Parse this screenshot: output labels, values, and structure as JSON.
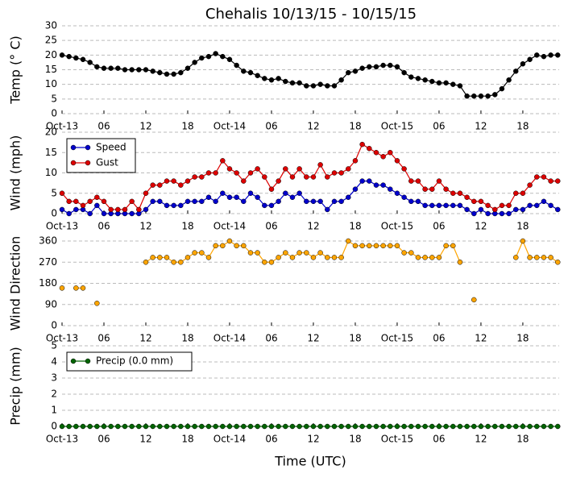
{
  "chart_data": [
    {
      "type": "line",
      "title": "Chehalis 10/13/15 - 10/15/15",
      "ylabel": "Temp (° C)",
      "color": "#000000",
      "x": [
        0,
        1,
        2,
        3,
        4,
        5,
        6,
        7,
        8,
        9,
        10,
        11,
        12,
        13,
        14,
        15,
        16,
        17,
        18,
        19,
        20,
        21,
        22,
        23,
        24,
        25,
        26,
        27,
        28,
        29,
        30,
        31,
        32,
        33,
        34,
        35,
        36,
        37,
        38,
        39,
        40,
        41,
        42,
        43,
        44,
        45,
        46,
        47,
        48,
        49,
        50,
        51,
        52,
        53,
        54,
        55,
        56,
        57,
        58,
        59,
        60,
        61,
        62,
        63,
        64,
        65,
        66,
        67,
        68,
        69,
        70,
        71
      ],
      "values": [
        20,
        19.5,
        19,
        18.5,
        17.5,
        16,
        15.5,
        15.5,
        15.5,
        15,
        15,
        15,
        15,
        14.5,
        14,
        13.5,
        13.5,
        14,
        15.5,
        17.5,
        19,
        19.5,
        20.5,
        19.5,
        18.5,
        16.5,
        14.5,
        14,
        13,
        12,
        11.5,
        12,
        11,
        10.5,
        10.5,
        9.5,
        9.5,
        10,
        9.5,
        9.5,
        11.5,
        14,
        14.5,
        15.5,
        16,
        16,
        16.5,
        16.5,
        16,
        14,
        12.5,
        12,
        11.5,
        11,
        10.5,
        10.5,
        10,
        9.5,
        6,
        6,
        6,
        6,
        6.5,
        8.5,
        11.5,
        14.5,
        17,
        18.5,
        20,
        19.5,
        20,
        20
      ],
      "xlim": [
        0,
        71.2
      ],
      "xticks": [
        {
          "value": 0,
          "label": "Oct-13"
        },
        {
          "value": 6,
          "label": "06"
        },
        {
          "value": 12,
          "label": "12"
        },
        {
          "value": 18,
          "label": "18"
        },
        {
          "value": 24,
          "label": "Oct-14"
        },
        {
          "value": 30,
          "label": "06"
        },
        {
          "value": 36,
          "label": "12"
        },
        {
          "value": 42,
          "label": "18"
        },
        {
          "value": 48,
          "label": "Oct-15"
        },
        {
          "value": 54,
          "label": "06"
        },
        {
          "value": 60,
          "label": "12"
        },
        {
          "value": 66,
          "label": "18"
        }
      ],
      "ylim": [
        0,
        30
      ],
      "yticks": [
        0,
        5,
        10,
        15,
        20,
        25,
        30
      ],
      "grid": true
    },
    {
      "type": "line",
      "ylabel": "Wind (mph)",
      "legend": "upper left",
      "x": [
        0,
        1,
        2,
        3,
        4,
        5,
        6,
        7,
        8,
        9,
        10,
        11,
        12,
        13,
        14,
        15,
        16,
        17,
        18,
        19,
        20,
        21,
        22,
        23,
        24,
        25,
        26,
        27,
        28,
        29,
        30,
        31,
        32,
        33,
        34,
        35,
        36,
        37,
        38,
        39,
        40,
        41,
        42,
        43,
        44,
        45,
        46,
        47,
        48,
        49,
        50,
        51,
        52,
        53,
        54,
        55,
        56,
        57,
        58,
        59,
        60,
        61,
        62,
        63,
        64,
        65,
        66,
        67,
        68,
        69,
        70,
        71
      ],
      "series": [
        {
          "name": "Speed",
          "color": "#0000cc",
          "values": [
            1,
            0,
            1,
            1,
            0,
            2,
            0,
            0,
            0,
            0,
            0,
            0,
            1,
            3,
            3,
            2,
            2,
            2,
            3,
            3,
            3,
            4,
            3,
            5,
            4,
            4,
            3,
            5,
            4,
            2,
            2,
            3,
            5,
            4,
            5,
            3,
            3,
            3,
            1,
            3,
            3,
            4,
            6,
            8,
            8,
            7,
            7,
            6,
            5,
            4,
            3,
            3,
            2,
            2,
            2,
            2,
            2,
            2,
            1,
            0,
            1,
            0,
            0,
            0,
            0,
            1,
            1,
            2,
            2,
            3,
            2,
            1
          ]
        },
        {
          "name": "Gust",
          "color": "#dd0000",
          "values": [
            5,
            3,
            3,
            2,
            3,
            4,
            3,
            1,
            1,
            1,
            3,
            1,
            5,
            7,
            7,
            8,
            8,
            7,
            8,
            9,
            9,
            10,
            10,
            13,
            11,
            10,
            8,
            10,
            11,
            9,
            6,
            8,
            11,
            9,
            11,
            9,
            9,
            12,
            9,
            10,
            10,
            11,
            13,
            17,
            16,
            15,
            14,
            15,
            13,
            11,
            8,
            8,
            6,
            6,
            8,
            6,
            5,
            5,
            4,
            3,
            3,
            2,
            1,
            2,
            2,
            5,
            5,
            7,
            9,
            9,
            8,
            8
          ]
        }
      ],
      "xlim": [
        0,
        71.2
      ],
      "xticks": [
        {
          "value": 0,
          "label": "Oct-13"
        },
        {
          "value": 6,
          "label": "06"
        },
        {
          "value": 12,
          "label": "12"
        },
        {
          "value": 18,
          "label": "18"
        },
        {
          "value": 24,
          "label": "Oct-14"
        },
        {
          "value": 30,
          "label": "06"
        },
        {
          "value": 36,
          "label": "12"
        },
        {
          "value": 42,
          "label": "18"
        },
        {
          "value": 48,
          "label": "Oct-15"
        },
        {
          "value": 54,
          "label": "06"
        },
        {
          "value": 60,
          "label": "12"
        },
        {
          "value": 66,
          "label": "18"
        }
      ],
      "ylim": [
        0,
        20
      ],
      "yticks": [
        0,
        5,
        10,
        15,
        20
      ],
      "grid": true
    },
    {
      "type": "line",
      "ylabel": "Wind Direction",
      "color": "#ffa500",
      "x": [
        0,
        1,
        2,
        3,
        4,
        5,
        6,
        7,
        8,
        9,
        10,
        11,
        12,
        13,
        14,
        15,
        16,
        17,
        18,
        19,
        20,
        21,
        22,
        23,
        24,
        25,
        26,
        27,
        28,
        29,
        30,
        31,
        32,
        33,
        34,
        35,
        36,
        37,
        38,
        39,
        40,
        41,
        42,
        43,
        44,
        45,
        46,
        47,
        48,
        49,
        50,
        51,
        52,
        53,
        54,
        55,
        56,
        57,
        58,
        59,
        60,
        61,
        62,
        63,
        64,
        65,
        66,
        67,
        68,
        69,
        70,
        71
      ],
      "values": [
        160,
        null,
        160,
        160,
        null,
        95,
        null,
        null,
        null,
        null,
        null,
        null,
        270,
        290,
        290,
        290,
        270,
        270,
        290,
        310,
        310,
        290,
        340,
        340,
        360,
        340,
        340,
        310,
        310,
        270,
        270,
        290,
        310,
        290,
        310,
        310,
        290,
        310,
        290,
        290,
        290,
        360,
        340,
        340,
        340,
        340,
        340,
        340,
        340,
        310,
        310,
        290,
        290,
        290,
        290,
        340,
        340,
        270,
        null,
        110,
        null,
        null,
        null,
        null,
        null,
        290,
        360,
        290,
        290,
        290,
        290,
        270
      ],
      "xlim": [
        0,
        71.2
      ],
      "xticks": [
        {
          "value": 0,
          "label": "Oct-13"
        },
        {
          "value": 6,
          "label": "06"
        },
        {
          "value": 12,
          "label": "12"
        },
        {
          "value": 18,
          "label": "18"
        },
        {
          "value": 24,
          "label": "Oct-14"
        },
        {
          "value": 30,
          "label": "06"
        },
        {
          "value": 36,
          "label": "12"
        },
        {
          "value": 42,
          "label": "18"
        },
        {
          "value": 48,
          "label": "Oct-15"
        },
        {
          "value": 54,
          "label": "06"
        },
        {
          "value": 60,
          "label": "12"
        },
        {
          "value": 66,
          "label": "18"
        }
      ],
      "ylim": [
        0,
        360
      ],
      "yticks": [
        0,
        90,
        180,
        270,
        360
      ],
      "grid": true
    },
    {
      "type": "line",
      "ylabel": "Precip (mm)",
      "xlabel": "Time (UTC)",
      "legend": "upper left",
      "x": [
        0,
        1,
        2,
        3,
        4,
        5,
        6,
        7,
        8,
        9,
        10,
        11,
        12,
        13,
        14,
        15,
        16,
        17,
        18,
        19,
        20,
        21,
        22,
        23,
        24,
        25,
        26,
        27,
        28,
        29,
        30,
        31,
        32,
        33,
        34,
        35,
        36,
        37,
        38,
        39,
        40,
        41,
        42,
        43,
        44,
        45,
        46,
        47,
        48,
        49,
        50,
        51,
        52,
        53,
        54,
        55,
        56,
        57,
        58,
        59,
        60,
        61,
        62,
        63,
        64,
        65,
        66,
        67,
        68,
        69,
        70,
        71
      ],
      "series": [
        {
          "name": "Precip (0.0 mm)",
          "color": "#006400",
          "values": [
            0,
            0,
            0,
            0,
            0,
            0,
            0,
            0,
            0,
            0,
            0,
            0,
            0,
            0,
            0,
            0,
            0,
            0,
            0,
            0,
            0,
            0,
            0,
            0,
            0,
            0,
            0,
            0,
            0,
            0,
            0,
            0,
            0,
            0,
            0,
            0,
            0,
            0,
            0,
            0,
            0,
            0,
            0,
            0,
            0,
            0,
            0,
            0,
            0,
            0,
            0,
            0,
            0,
            0,
            0,
            0,
            0,
            0,
            0,
            0,
            0,
            0,
            0,
            0,
            0,
            0,
            0,
            0,
            0,
            0,
            0,
            0
          ]
        }
      ],
      "xlim": [
        0,
        71.2
      ],
      "xticks": [
        {
          "value": 0,
          "label": "Oct-13"
        },
        {
          "value": 6,
          "label": "06"
        },
        {
          "value": 12,
          "label": "12"
        },
        {
          "value": 18,
          "label": "18"
        },
        {
          "value": 24,
          "label": "Oct-14"
        },
        {
          "value": 30,
          "label": "06"
        },
        {
          "value": 36,
          "label": "12"
        },
        {
          "value": 42,
          "label": "18"
        },
        {
          "value": 48,
          "label": "Oct-15"
        },
        {
          "value": 54,
          "label": "06"
        },
        {
          "value": 60,
          "label": "12"
        },
        {
          "value": 66,
          "label": "18"
        }
      ],
      "ylim": [
        0,
        5
      ],
      "yticks": [
        0,
        1,
        2,
        3,
        4,
        5
      ],
      "grid": true
    }
  ]
}
